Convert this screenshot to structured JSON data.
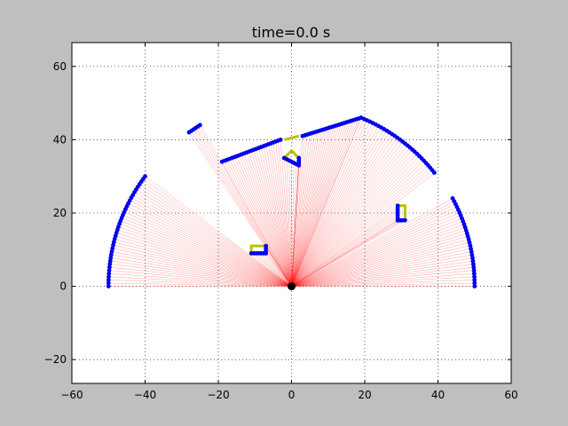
{
  "chart_data": {
    "type": "scatter",
    "title": "time=0.0 s",
    "xlabel": "",
    "ylabel": "",
    "xlim": [
      -60,
      60
    ],
    "ylim": [
      -26.5,
      66.5
    ],
    "xticks": [
      -60,
      -40,
      -20,
      0,
      20,
      40,
      60
    ],
    "yticks": [
      -20,
      0,
      20,
      40,
      60
    ],
    "xtick_labels": [
      "−60",
      "−40",
      "−20",
      "0",
      "20",
      "40",
      "60"
    ],
    "ytick_labels": [
      "−20",
      "0",
      "20",
      "40",
      "60"
    ],
    "grid": true,
    "sensor_origin": [
      0,
      0
    ],
    "colors": {
      "figure_bg": "#bfbfbf",
      "axes_bg": "#ffffff",
      "ray": "#ff0000",
      "hit": "#0000ee",
      "object": "#bfbf00",
      "sensor": "#000000"
    },
    "hit_segments": [
      {
        "from": [
          -50,
          0
        ],
        "to": [
          -40,
          30
        ],
        "shape": "arc"
      },
      {
        "from": [
          -28,
          42
        ],
        "to": [
          -25,
          44
        ],
        "shape": "line"
      },
      {
        "from": [
          -19,
          34
        ],
        "to": [
          -3,
          40
        ],
        "shape": "line"
      },
      {
        "from": [
          3,
          41
        ],
        "to": [
          19,
          46
        ],
        "shape": "line"
      },
      {
        "from": [
          19,
          46
        ],
        "to": [
          39,
          31
        ],
        "shape": "arc"
      },
      {
        "from": [
          44,
          24
        ],
        "to": [
          50,
          0
        ],
        "shape": "arc"
      },
      {
        "from": [
          -11,
          9
        ],
        "to": [
          -7,
          9
        ],
        "shape": "line"
      },
      {
        "from": [
          -7,
          9
        ],
        "to": [
          -7,
          11
        ],
        "shape": "line"
      },
      {
        "from": [
          -2,
          35
        ],
        "to": [
          2,
          33
        ],
        "shape": "line"
      },
      {
        "from": [
          2,
          33
        ],
        "to": [
          2,
          35
        ],
        "shape": "line"
      },
      {
        "from": [
          29,
          22
        ],
        "to": [
          29,
          18
        ],
        "shape": "line"
      },
      {
        "from": [
          29,
          18
        ],
        "to": [
          31,
          18
        ],
        "shape": "line"
      }
    ],
    "objects": [
      {
        "points": [
          [
            -11,
            9
          ],
          [
            -11,
            11
          ],
          [
            -7,
            11
          ],
          [
            -7,
            9
          ]
        ]
      },
      {
        "points": [
          [
            -2,
            40
          ],
          [
            2,
            41
          ]
        ]
      },
      {
        "points": [
          [
            -2,
            35
          ],
          [
            0,
            37
          ],
          [
            2,
            35
          ]
        ]
      },
      {
        "points": [
          [
            29,
            22
          ],
          [
            31,
            22
          ],
          [
            31,
            18
          ]
        ]
      }
    ]
  }
}
